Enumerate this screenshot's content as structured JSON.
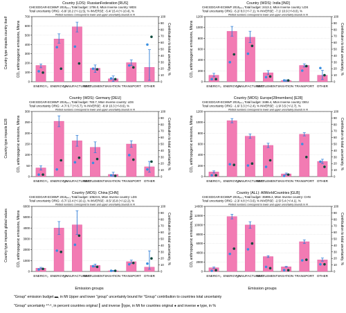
{
  "colors": {
    "bar": "#f27bb3",
    "bar_edge": "#e0529a",
    "error": "#2b7bd6",
    "orig": "#3a8fe0",
    "inverse": "#0e4a3c",
    "grid": "#bfbfbf"
  },
  "axes_labels": {
    "x": "Emission groups",
    "y_right": "Contribution to total uncertainty, %",
    "y_left_row1": "Country type impacts country itself",
    "y_left_row2": "Country type impacts E28",
    "y_left_row3": "Country type impacts global values",
    "y_left_panel_html": "CO₂ anthropogenic emissions, Mtons"
  },
  "legend": {
    "line1": "\"Group\" emission budget   ▬, in Mt  Upper and lower \"group\" uncertainty bound for \"Group\" contribution to countries total uncertainty",
    "line2": "\"Group\" uncertainty ⁴⁰·⁶, in percent  countries original ┃ and inverse ┃type, in Mt  for countries original ● and inverse ● type, in %"
  },
  "chart_data": [
    {
      "type": "bar",
      "title": "Country (LDS): RussianFederation [RUS]",
      "info1": "CHE:EDGAR-ECMWF 2015ᵥ₄.₃     Total budget: 1706.0, Mton     Inverse country: WDS",
      "info2": "Total uncertainty    ORIG: -6.8/ 18.2 (+/-11.5), %     INVERSE: -5.4/ 15.4 (+/-10.4), %",
      "note": "Plotted numbers correspond to lower and upper uncertainty bounds in %",
      "categories": [
        "ENERGY₀",
        "ENERGY_A",
        "MANUFACTURING",
        "SETTLEMENTS",
        "AVIATION",
        "TRANSPORT",
        "OTHER"
      ],
      "values": [
        175,
        460,
        590,
        145,
        32,
        205,
        155
      ],
      "err_low": [
        25,
        45,
        55,
        45,
        30,
        30,
        140
      ],
      "err_high": [
        15,
        55,
        50,
        35,
        30,
        30,
        190
      ],
      "orig_pct": [
        16,
        53,
        54,
        20,
        5,
        25,
        57
      ],
      "inv_pct": [
        14,
        20,
        28,
        19,
        4,
        22,
        69
      ],
      "ylim": [
        0,
        700
      ],
      "yticks": [
        0,
        100,
        200,
        300,
        400,
        500,
        600,
        700
      ],
      "y2lim": [
        0,
        100
      ],
      "y2ticks": [
        0,
        10,
        20,
        30,
        40,
        50,
        60,
        70,
        80,
        90,
        100
      ]
    },
    {
      "type": "bar",
      "title": "Country (WDS): India [IND]",
      "info1": "CHE:EDGAR-ECMWF 2015ᵥ₄.₃     Total budget: 2413.2, Mton     Inverse country: LDS",
      "info2": "Total uncertainty    ORIG: -5.2/ 8.0 (+/-7.1), %     INVERSE: -7.1/ 10.9 (+/-8.0), %",
      "note": "Plotted numbers correspond to lower and upper uncertainty bounds in %",
      "categories": [
        "ENERGY₀",
        "ENERGY_A",
        "MANUFACTURING",
        "SETTLEMENTS",
        "AVIATION",
        "TRANSPORT",
        "OTHER"
      ],
      "values": [
        120,
        930,
        820,
        165,
        20,
        300,
        120
      ],
      "err_low": [
        30,
        90,
        100,
        35,
        15,
        30,
        80
      ],
      "err_high": [
        35,
        90,
        110,
        40,
        15,
        30,
        90
      ],
      "orig_pct": [
        4,
        30,
        43,
        7,
        2,
        17,
        21
      ],
      "inv_pct": [
        4,
        42,
        55,
        8,
        2,
        24,
        10
      ],
      "ylim": [
        0,
        1200
      ],
      "yticks": [
        0,
        200,
        400,
        600,
        800,
        1000,
        1200
      ],
      "y2lim": [
        0,
        100
      ],
      "y2ticks": [
        0,
        10,
        20,
        30,
        40,
        50,
        60,
        70,
        80,
        90,
        100
      ]
    },
    {
      "type": "bar",
      "title": "Country (WDS): Germany [DEU]",
      "info1": "CHE:EDGAR-ECMWF 2015ᵥ₄.₃     Total budget: 783.7, Mton     Inverse country: LDS",
      "info2": "Total uncertainty    ORIG: -4.7/ 6.7 (+/-5.7), %     INVERSE: -8.9/ 10.3 (+/-8.6), %",
      "note": "Plotted numbers correspond to lower and upper uncertainty bounds in %",
      "categories": [
        "ENERGY₀",
        "ENERGY_A",
        "MANUFACTURING",
        "SETTLEMENTS",
        "AVIATION",
        "TRANSPORT",
        "OTHER"
      ],
      "values": [
        40,
        255,
        165,
        135,
        10,
        150,
        45
      ],
      "err_low": [
        10,
        25,
        25,
        25,
        10,
        15,
        25
      ],
      "err_high": [
        10,
        25,
        25,
        25,
        10,
        15,
        25
      ],
      "orig_pct": [
        3,
        11,
        22,
        21,
        2,
        33,
        11
      ],
      "inv_pct": [
        3,
        25,
        29,
        27,
        1,
        26,
        23
      ],
      "ylim": [
        0,
        300
      ],
      "yticks": [
        0,
        50,
        100,
        150,
        200,
        250,
        300
      ],
      "y2lim": [
        0,
        100
      ],
      "y2ticks": [
        0,
        10,
        20,
        30,
        40,
        50,
        60,
        70,
        80,
        90,
        100
      ]
    },
    {
      "type": "bar",
      "title": "Country (WDS): Europe(28members) [E28]",
      "info1": "CHE:EDGAR-ECMWF 2015ᵥ₄.₃     Total budget: 3486.4, Mton     Inverse country: DEU",
      "info2": "Total uncertainty    ORIG: -1.6/ 3.3 (+/-2.4), %     INVERSE: -1.9/ 3.5 (+/-2.7), %",
      "note": "Plotted numbers correspond to lower and upper uncertainty bounds in %",
      "categories": [
        "ENERGY₀",
        "ENERGY_A",
        "MANUFACTURING",
        "SETTLEMENTS",
        "AVIATION",
        "TRANSPORT",
        "OTHER"
      ],
      "values": [
        85,
        1030,
        745,
        575,
        50,
        780,
        280
      ],
      "err_low": [
        20,
        40,
        40,
        40,
        15,
        30,
        40
      ],
      "err_high": [
        20,
        40,
        40,
        40,
        15,
        30,
        40
      ],
      "orig_pct": [
        2,
        19,
        17,
        15,
        1,
        50,
        23
      ],
      "inv_pct": [
        2,
        18,
        20,
        25,
        3,
        30,
        15
      ],
      "ylim": [
        0,
        1200
      ],
      "yticks": [
        0,
        200,
        400,
        600,
        800,
        1000,
        1200
      ],
      "y2lim": [
        0,
        100
      ],
      "y2ticks": [
        0,
        10,
        20,
        30,
        40,
        50,
        60,
        70,
        80,
        90,
        100
      ]
    },
    {
      "type": "bar",
      "title": "Country (WDS): China [CHN]",
      "info1": "CHE:EDGAR-ECMWF 2015ᵥ₄.₃     Total budget: 10523.5, Mton     Inverse country: LDS",
      "info2": "Total uncertainty    ORIG: -6.7/ 13.4 (+/-10.1), %     INVERSE: -8.5/ 15.8 (+/-12.2), %",
      "note": "Plotted numbers correspond to lower and upper uncertainty bounds in %",
      "categories": [
        "ENERGY₀",
        "ENERGY_A",
        "MANUFACTURING",
        "SETTLEMENTS",
        "AVIATION",
        "TRANSPORT",
        "OTHER"
      ],
      "values": [
        300,
        4000,
        4300,
        550,
        60,
        900,
        400
      ],
      "err_low": [
        80,
        600,
        900,
        130,
        30,
        150,
        200
      ],
      "err_high": [
        80,
        600,
        1300,
        130,
        30,
        150,
        1500
      ],
      "orig_pct": [
        3,
        32,
        41,
        8,
        1,
        11,
        12
      ],
      "inv_pct": [
        4,
        30,
        55,
        7,
        1,
        13,
        20
      ],
      "ylim": [
        0,
        6000
      ],
      "yticks": [
        0,
        1000,
        2000,
        3000,
        4000,
        5000,
        6000
      ],
      "y2lim": [
        0,
        100
      ],
      "y2ticks": [
        0,
        10,
        20,
        30,
        40,
        50,
        60,
        70,
        80,
        90,
        100
      ]
    },
    {
      "type": "bar",
      "title": "Country (ALL): AllWorldCountries [GLB]",
      "info1": "CHE:EDGAR-ECMWF 2015ᵥ₄.₃     Total budget: 35995.2, Mton     Inverse country: CHN",
      "info2": "Total uncertainty    ORIG: -2.3/ 4.8 (+/-3.6), %     INVERSE: -2.5/ 5.4 (+/-4.1), %",
      "note": "Plotted numbers correspond to lower and upper uncertainty bounds in %",
      "categories": [
        "ENERGY₀",
        "ENERGY_A",
        "MANUFACTURING",
        "SETTLEMENTS",
        "AVIATION",
        "TRANSPORT",
        "OTHER"
      ],
      "values": [
        800,
        11800,
        10000,
        3200,
        1000,
        6400,
        2500
      ],
      "err_low": [
        150,
        500,
        700,
        200,
        100,
        400,
        300
      ],
      "err_high": [
        150,
        500,
        700,
        200,
        100,
        400,
        400
      ],
      "orig_pct": [
        1,
        27,
        34,
        7,
        2,
        17,
        11
      ],
      "inv_pct": [
        2,
        35,
        43,
        5,
        2,
        18,
        11
      ],
      "ylim": [
        0,
        14000
      ],
      "yticks": [
        0,
        2000,
        4000,
        6000,
        8000,
        10000,
        12000,
        14000
      ],
      "y2lim": [
        0,
        100
      ],
      "y2ticks": [
        0,
        10,
        20,
        30,
        40,
        50,
        60,
        70,
        80,
        90,
        100
      ]
    }
  ]
}
